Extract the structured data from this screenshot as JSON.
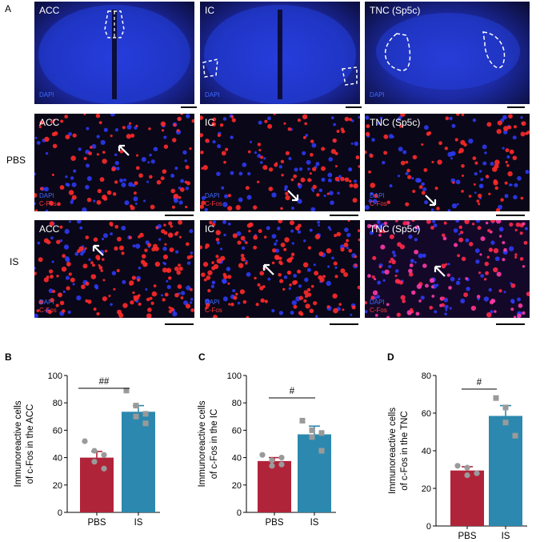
{
  "figure": {
    "panel_a_label": "A",
    "row_labels": [
      "PBS",
      "IS"
    ],
    "overview_titles": [
      "ACC",
      "IC",
      "TNC (Sp5c)"
    ],
    "overview_stain": "DAPI",
    "detail_titles": [
      "ACC",
      "IC",
      "TNC (Sp5c)"
    ],
    "stain_dapi": "DAPI",
    "stain_cfos": "C-Fos"
  },
  "colors": {
    "pbs_bar": "#b0243a",
    "is_bar": "#2c88ae",
    "points": "#9a9a9a",
    "dapi_blue": "#2338d6",
    "background_dark": "#0a0718"
  },
  "chart_data": [
    {
      "panel": "B",
      "type": "bar",
      "categories": [
        "PBS",
        "IS"
      ],
      "values": [
        40,
        73.5
      ],
      "errors": [
        4.5,
        4.5
      ],
      "points": [
        [
          52,
          45,
          37,
          32,
          42
        ],
        [
          89,
          78,
          70,
          65,
          72
        ]
      ],
      "ylabel": "Immunoreactive cells\nof c-Fos in the ACC",
      "ylim": [
        0,
        100
      ],
      "yticks": [
        0,
        20,
        40,
        60,
        80,
        100
      ],
      "significance": "##"
    },
    {
      "panel": "C",
      "type": "bar",
      "categories": [
        "PBS",
        "IS"
      ],
      "values": [
        37.5,
        57
      ],
      "errors": [
        2.5,
        6
      ],
      "points": [
        [
          42,
          38,
          34,
          35,
          40
        ],
        [
          67,
          60,
          55,
          45,
          58
        ]
      ],
      "ylabel": "Immunoreactive cells\nof c-Fos in the IC",
      "ylim": [
        0,
        100
      ],
      "yticks": [
        0,
        20,
        40,
        60,
        80,
        100
      ],
      "significance": "#"
    },
    {
      "panel": "D",
      "type": "bar",
      "categories": [
        "PBS",
        "IS"
      ],
      "values": [
        29.5,
        58.5
      ],
      "errors": [
        2,
        5.5
      ],
      "points": [
        [
          32,
          31,
          27,
          28
        ],
        [
          68,
          63,
          55,
          48
        ]
      ],
      "ylabel": "Immunoreactive cells\nof c-Fos in the TNC",
      "ylim": [
        0,
        80
      ],
      "yticks": [
        0,
        20,
        40,
        60,
        80
      ],
      "significance": "#"
    }
  ]
}
